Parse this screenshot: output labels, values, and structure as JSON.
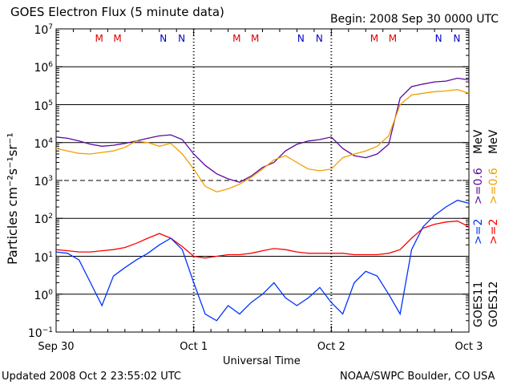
{
  "header": {
    "title": "GOES Electron Flux (5 minute data)",
    "begin": "Begin: 2008 Sep 30 0000 UTC"
  },
  "footer": {
    "updated": "Updated 2008 Oct  2 23:55:02 UTC",
    "credit": "NOAA/SWPC Boulder, CO USA"
  },
  "legend": {
    "goes11": "GOES11",
    "goes12": "GOES12",
    "e2_blue": ">=2",
    "e06_purple": ">=0.6",
    "mev_1": "MeV",
    "e2_red": ">=2",
    "e06_orange": ">=0.6",
    "mev_2": "MeV"
  },
  "colors": {
    "purple": "#5a0aa0",
    "orange": "#f0a000",
    "red": "#ff0000",
    "blue": "#0033ff",
    "m_marker": "#dd0000",
    "n_marker": "#0000cc"
  },
  "chart_data": {
    "type": "line",
    "xlabel": "Universal Time",
    "ylabel": "Particles cm⁻²s⁻¹sr⁻¹",
    "xlim": [
      0,
      72
    ],
    "ylim_log10": [
      -1,
      7
    ],
    "x_ticks": [
      {
        "label": "Sep 30",
        "x": 0
      },
      {
        "label": "Oct 1",
        "x": 24
      },
      {
        "label": "Oct 2",
        "x": 48
      },
      {
        "label": "Oct 3",
        "x": 72
      }
    ],
    "y_ticks": [
      {
        "mantissa": "10",
        "exp": "−1"
      },
      {
        "mantissa": "10",
        "exp": "0"
      },
      {
        "mantissa": "10",
        "exp": "1"
      },
      {
        "mantissa": "10",
        "exp": "2"
      },
      {
        "mantissa": "10",
        "exp": "3"
      },
      {
        "mantissa": "10",
        "exp": "4"
      },
      {
        "mantissa": "10",
        "exp": "5"
      },
      {
        "mantissa": "10",
        "exp": "6"
      },
      {
        "mantissa": "10",
        "exp": "7"
      }
    ],
    "threshold_lines_log10": [
      3
    ],
    "grid_lines_log10": [
      0,
      1,
      2,
      4,
      5,
      6
    ],
    "markers": [
      {
        "label": "M",
        "hour": 7.5,
        "type": "M"
      },
      {
        "label": "M",
        "hour": 10.7,
        "type": "M"
      },
      {
        "label": "N",
        "hour": 18.7,
        "type": "N"
      },
      {
        "label": "N",
        "hour": 21.9,
        "type": "N"
      },
      {
        "label": "M",
        "hour": 31.5,
        "type": "M"
      },
      {
        "label": "M",
        "hour": 34.7,
        "type": "M"
      },
      {
        "label": "N",
        "hour": 42.7,
        "type": "N"
      },
      {
        "label": "N",
        "hour": 45.9,
        "type": "N"
      },
      {
        "label": "M",
        "hour": 55.5,
        "type": "M"
      },
      {
        "label": "M",
        "hour": 58.7,
        "type": "M"
      },
      {
        "label": "N",
        "hour": 66.7,
        "type": "N"
      },
      {
        "label": "N",
        "hour": 69.9,
        "type": "N"
      }
    ],
    "series": [
      {
        "name": "GOES11 >=0.6 MeV",
        "color_key": "purple",
        "x": [
          0,
          2,
          4,
          6,
          8,
          10,
          12,
          14,
          16,
          18,
          20,
          22,
          24,
          26,
          28,
          30,
          32,
          34,
          36,
          38,
          40,
          42,
          44,
          46,
          48,
          50,
          52,
          54,
          56,
          58,
          60,
          62,
          64,
          66,
          68,
          70,
          72
        ],
        "y": [
          14000,
          13000,
          11000,
          9000,
          8000,
          8500,
          9500,
          11000,
          13000,
          15000,
          16000,
          12000,
          5000,
          2500,
          1500,
          1100,
          900,
          1300,
          2200,
          3000,
          6000,
          9000,
          11000,
          12000,
          14000,
          7000,
          4500,
          4000,
          5000,
          9000,
          150000,
          300000,
          350000,
          400000,
          420000,
          500000,
          450000
        ]
      },
      {
        "name": "GOES12 >=0.6 MeV",
        "color_key": "orange",
        "x": [
          0,
          2,
          4,
          6,
          8,
          10,
          12,
          14,
          16,
          18,
          20,
          22,
          24,
          26,
          28,
          30,
          32,
          34,
          36,
          38,
          40,
          42,
          44,
          46,
          48,
          50,
          52,
          54,
          56,
          58,
          60,
          62,
          64,
          66,
          68,
          70,
          72
        ],
        "y": [
          7000,
          6000,
          5200,
          5000,
          5500,
          6000,
          7500,
          11000,
          10000,
          8000,
          9500,
          5000,
          2000,
          700,
          500,
          600,
          800,
          1200,
          2000,
          3500,
          4500,
          3000,
          2000,
          1800,
          2000,
          4000,
          5000,
          6000,
          8000,
          15000,
          100000,
          180000,
          200000,
          220000,
          230000,
          250000,
          200000
        ]
      },
      {
        "name": "GOES12 >=2 MeV",
        "color_key": "red",
        "x": [
          0,
          2,
          4,
          6,
          8,
          10,
          12,
          14,
          16,
          18,
          20,
          22,
          24,
          26,
          28,
          30,
          32,
          34,
          36,
          38,
          40,
          42,
          44,
          46,
          48,
          50,
          52,
          54,
          56,
          58,
          60,
          62,
          64,
          66,
          68,
          70,
          72
        ],
        "y": [
          15,
          14,
          13,
          13,
          14,
          15,
          17,
          22,
          30,
          40,
          30,
          18,
          10,
          9,
          10,
          11,
          11,
          12,
          14,
          16,
          15,
          13,
          12,
          12,
          12,
          12,
          11,
          11,
          11,
          12,
          15,
          30,
          55,
          70,
          80,
          85,
          60
        ]
      },
      {
        "name": "GOES11 >=2 MeV",
        "color_key": "blue",
        "x": [
          0,
          2,
          4,
          6,
          8,
          10,
          12,
          14,
          16,
          18,
          20,
          22,
          24,
          26,
          28,
          30,
          32,
          34,
          36,
          38,
          40,
          42,
          44,
          46,
          48,
          50,
          52,
          54,
          56,
          58,
          60,
          62,
          64,
          66,
          68,
          70,
          72
        ],
        "y": [
          13,
          12,
          8,
          2,
          0.5,
          3,
          5,
          8,
          12,
          20,
          30,
          15,
          2,
          0.3,
          0.2,
          0.5,
          0.3,
          0.6,
          1,
          2,
          0.8,
          0.5,
          0.8,
          1.5,
          0.6,
          0.3,
          2,
          4,
          3,
          1,
          0.3,
          15,
          60,
          120,
          200,
          300,
          250
        ]
      }
    ]
  }
}
